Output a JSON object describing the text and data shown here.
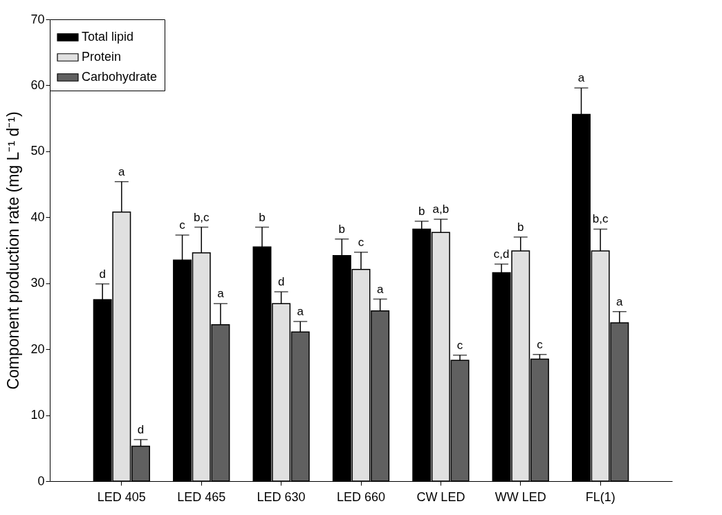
{
  "chart_data": {
    "type": "bar",
    "ylabel": "Component production rate (mg L⁻¹ d⁻¹)",
    "categories": [
      "LED 405",
      "LED 465",
      "LED 630",
      "LED 660",
      "CW LED",
      "WW LED",
      "FL(1)"
    ],
    "series": [
      {
        "name": "Total lipid",
        "color": "#000000",
        "values": [
          27.5,
          33.5,
          35.5,
          34.2,
          38.2,
          31.6,
          55.6
        ],
        "errors": [
          2.4,
          3.8,
          3.0,
          2.5,
          1.2,
          1.3,
          4.0
        ]
      },
      {
        "name": "Protein",
        "color": "#e0e0e0",
        "values": [
          40.8,
          34.6,
          26.9,
          32.1,
          37.7,
          34.9,
          34.9
        ],
        "errors": [
          4.6,
          3.9,
          1.8,
          2.6,
          2.0,
          2.1,
          3.3
        ]
      },
      {
        "name": "Carbohydrate",
        "color": "#606060",
        "values": [
          5.3,
          23.7,
          22.6,
          25.8,
          18.3,
          18.5,
          24.0
        ],
        "errors": [
          1.0,
          3.2,
          1.6,
          1.8,
          0.8,
          0.7,
          1.7
        ]
      }
    ],
    "ylim": [
      0,
      70
    ],
    "yticks": [
      0,
      10,
      20,
      30,
      40,
      50,
      60,
      70
    ],
    "grid": false,
    "legend": "top left",
    "annotations": [
      "d",
      "a",
      "d",
      "c",
      "b,c",
      "a",
      "b",
      "d",
      "a",
      "b",
      "c",
      "a",
      "b",
      "a,b",
      "c",
      "c,d",
      "b",
      "c",
      "a",
      "b,c",
      "a"
    ]
  }
}
